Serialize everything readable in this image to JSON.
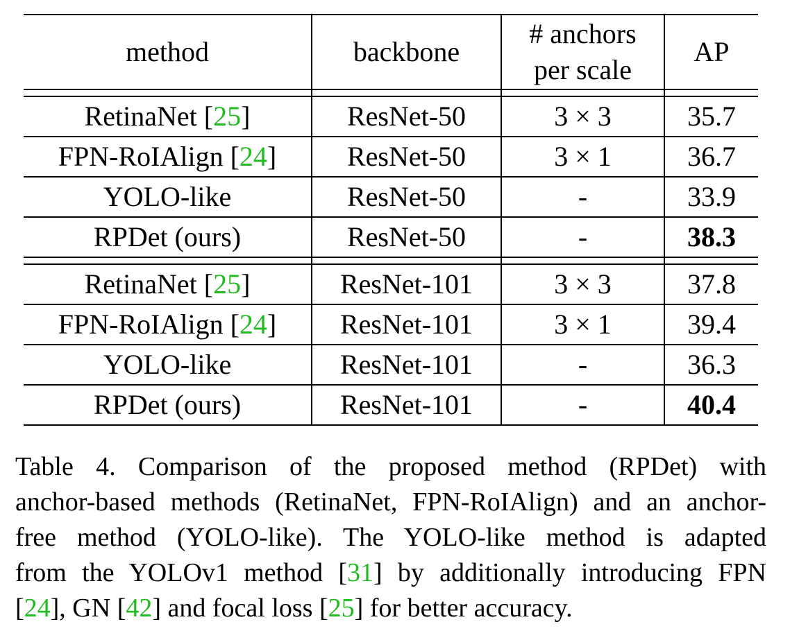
{
  "table": {
    "headers": {
      "method": "method",
      "backbone": "backbone",
      "anchors_line1": "# anchors",
      "anchors_line2": "per scale",
      "ap": "AP"
    },
    "groups": [
      {
        "rows": [
          {
            "method": "RetinaNet",
            "cite": "25",
            "backbone": "ResNet-50",
            "anchors": "3 × 3",
            "ap": "35.7",
            "bold": false
          },
          {
            "method": "FPN-RoIAlign",
            "cite": "24",
            "backbone": "ResNet-50",
            "anchors": "3 × 1",
            "ap": "36.7",
            "bold": false
          },
          {
            "method": "YOLO-like",
            "cite": "",
            "backbone": "ResNet-50",
            "anchors": "-",
            "ap": "33.9",
            "bold": false
          },
          {
            "method": "RPDet (ours)",
            "cite": "",
            "backbone": "ResNet-50",
            "anchors": "-",
            "ap": "38.3",
            "bold": true
          }
        ]
      },
      {
        "rows": [
          {
            "method": "RetinaNet",
            "cite": "25",
            "backbone": "ResNet-101",
            "anchors": "3 × 3",
            "ap": "37.8",
            "bold": false
          },
          {
            "method": "FPN-RoIAlign",
            "cite": "24",
            "backbone": "ResNet-101",
            "anchors": "3 × 1",
            "ap": "39.4",
            "bold": false
          },
          {
            "method": "YOLO-like",
            "cite": "",
            "backbone": "ResNet-101",
            "anchors": "-",
            "ap": "36.3",
            "bold": false
          },
          {
            "method": "RPDet (ours)",
            "cite": "",
            "backbone": "ResNet-101",
            "anchors": "-",
            "ap": "40.4",
            "bold": true
          }
        ]
      }
    ]
  },
  "caption": {
    "line1": "Table 4. Comparison of the proposed method (RPDet) with",
    "line2": "anchor-based methods (RetinaNet, FPN-RoIAlign) and an anchor-",
    "line3": "free method (YOLO-like).  The YOLO-like method is adapted",
    "line4_pre": "from the YOLOv1 method [",
    "line4_cite": "31",
    "line4_post": "] by additionally introducing FPN",
    "line5_a": "[",
    "line5_cite1": "24",
    "line5_b": "], GN [",
    "line5_cite2": "42",
    "line5_c": "] and focal loss [",
    "line5_cite3": "25",
    "line5_d": "] for better accuracy."
  },
  "colors": {
    "citation": "#22bb22",
    "text": "#000000"
  }
}
